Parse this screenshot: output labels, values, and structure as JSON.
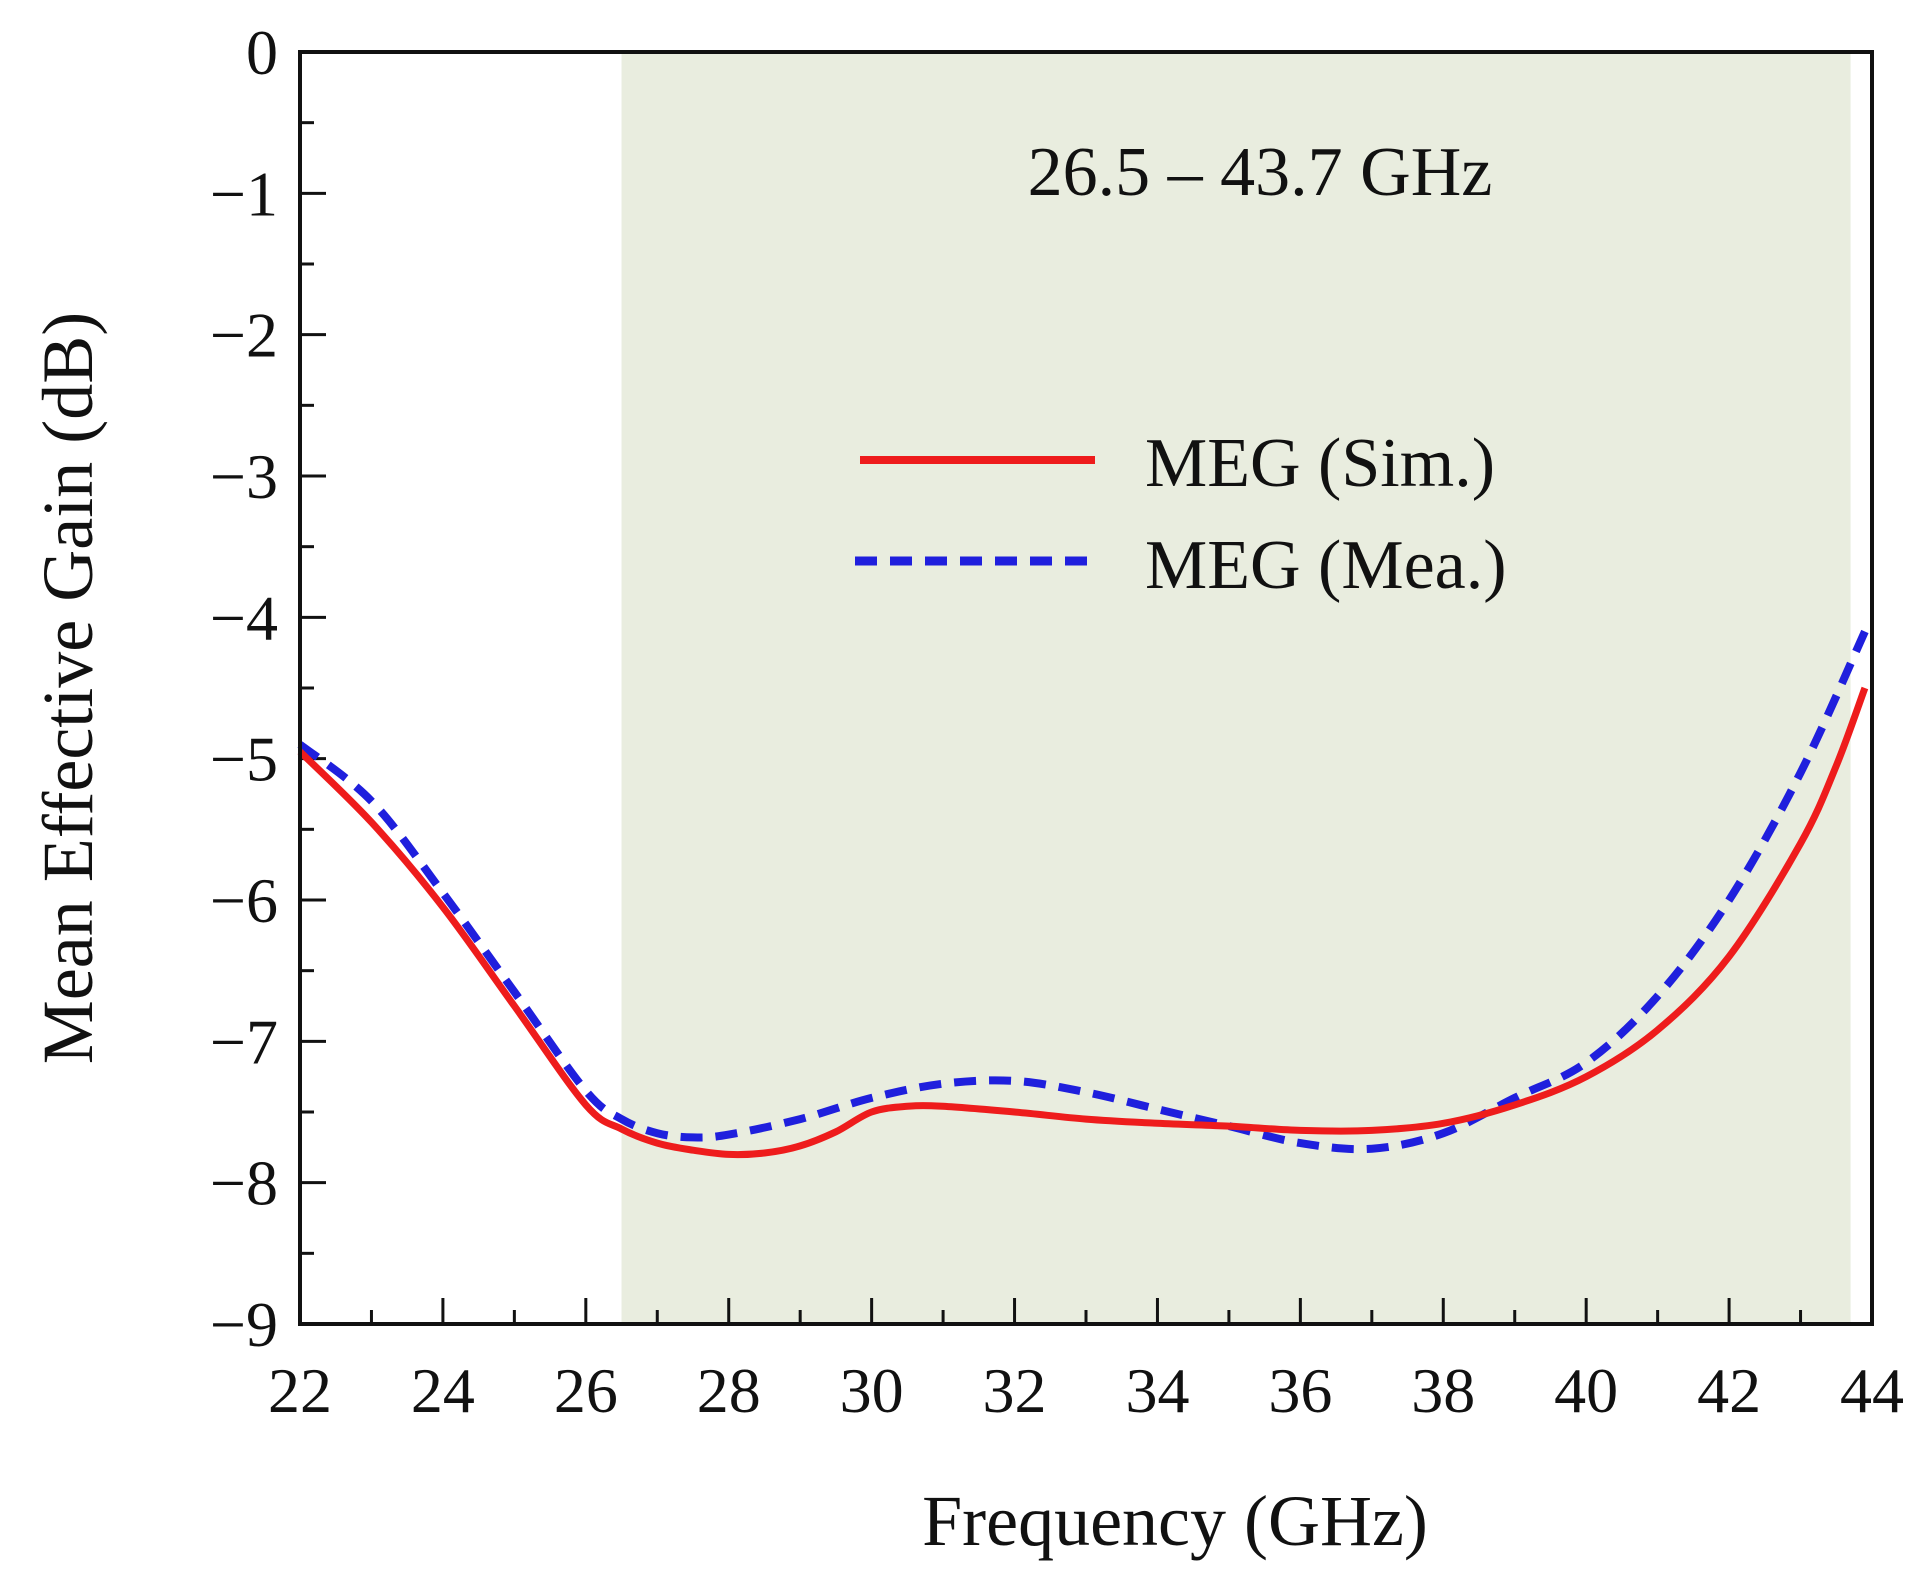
{
  "chart_data": {
    "type": "line",
    "xlabel": "Frequency (GHz)",
    "ylabel": "Mean Effective Gain (dB)",
    "xlim": [
      22,
      44
    ],
    "ylim": [
      -9,
      0
    ],
    "xticks": [
      "22",
      "24",
      "26",
      "28",
      "30",
      "32",
      "34",
      "36",
      "38",
      "40",
      "42",
      "44"
    ],
    "yticks": [
      "0",
      "−1",
      "−2",
      "−3",
      "−4",
      "−5",
      "−6",
      "−7",
      "−8",
      "−9"
    ],
    "shaded_band": {
      "start": 26.5,
      "end": 43.7,
      "color": "#e9eddf"
    },
    "annotation": "26.5 – 43.7 GHz",
    "legend_position": "upper-center-right",
    "series": [
      {
        "name": "MEG (Sim.)",
        "color": "#ee1c1c",
        "style": "solid",
        "x": [
          22,
          23,
          24,
          25,
          26,
          26.5,
          27,
          27.5,
          28,
          28.5,
          29,
          29.5,
          30,
          30.5,
          31,
          32,
          33,
          34,
          35,
          36,
          37,
          38,
          39,
          40,
          41,
          42,
          43,
          43.5,
          43.9
        ],
        "y": [
          -4.95,
          -5.45,
          -6.05,
          -6.75,
          -7.45,
          -7.62,
          -7.72,
          -7.77,
          -7.8,
          -7.79,
          -7.74,
          -7.64,
          -7.5,
          -7.46,
          -7.46,
          -7.5,
          -7.55,
          -7.58,
          -7.6,
          -7.63,
          -7.63,
          -7.58,
          -7.45,
          -7.25,
          -6.92,
          -6.4,
          -5.6,
          -5.05,
          -4.5
        ]
      },
      {
        "name": "MEG (Mea.)",
        "color": "#1f1fdd",
        "style": "dashed",
        "x": [
          22,
          23,
          24,
          25,
          26,
          26.5,
          27,
          27.5,
          28,
          29,
          30,
          31,
          32,
          33,
          34,
          35,
          36,
          37,
          38,
          39,
          40,
          41,
          42,
          43,
          43.9
        ],
        "y": [
          -4.9,
          -5.3,
          -5.95,
          -6.65,
          -7.35,
          -7.55,
          -7.65,
          -7.68,
          -7.66,
          -7.55,
          -7.4,
          -7.3,
          -7.28,
          -7.36,
          -7.48,
          -7.6,
          -7.72,
          -7.76,
          -7.65,
          -7.4,
          -7.15,
          -6.68,
          -6.0,
          -5.1,
          -4.1
        ]
      }
    ]
  }
}
